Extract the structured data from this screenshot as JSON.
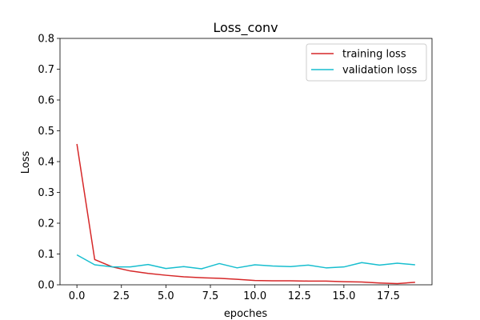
{
  "chart_data": {
    "type": "line",
    "title": "Loss_conv",
    "xlabel": "epoches",
    "ylabel": "Loss",
    "xlim": [
      -0.95,
      19.95
    ],
    "ylim": [
      0,
      0.8
    ],
    "xticks": [
      0.0,
      2.5,
      5.0,
      7.5,
      10.0,
      12.5,
      15.0,
      17.5
    ],
    "xtick_labels": [
      "0.0",
      "2.5",
      "5.0",
      "7.5",
      "10.0",
      "12.5",
      "15.0",
      "17.5"
    ],
    "yticks": [
      0.0,
      0.1,
      0.2,
      0.3,
      0.4,
      0.5,
      0.6,
      0.7,
      0.8
    ],
    "ytick_labels": [
      "0.0",
      "0.1",
      "0.2",
      "0.3",
      "0.4",
      "0.5",
      "0.6",
      "0.7",
      "0.8"
    ],
    "grid": false,
    "legend_position": "top-right",
    "x": [
      0,
      1,
      2,
      3,
      4,
      5,
      6,
      7,
      8,
      9,
      10,
      11,
      12,
      13,
      14,
      15,
      16,
      17,
      18,
      19
    ],
    "series": [
      {
        "name": "training loss",
        "color": "#d62728",
        "values": [
          0.457,
          0.082,
          0.058,
          0.045,
          0.037,
          0.031,
          0.026,
          0.023,
          0.021,
          0.018,
          0.014,
          0.013,
          0.013,
          0.012,
          0.012,
          0.01,
          0.009,
          0.006,
          0.004,
          0.008
        ]
      },
      {
        "name": "validation loss",
        "color": "#17becf",
        "values": [
          0.097,
          0.065,
          0.058,
          0.058,
          0.066,
          0.053,
          0.059,
          0.052,
          0.069,
          0.055,
          0.065,
          0.061,
          0.059,
          0.064,
          0.055,
          0.058,
          0.072,
          0.064,
          0.07,
          0.065
        ]
      }
    ]
  }
}
